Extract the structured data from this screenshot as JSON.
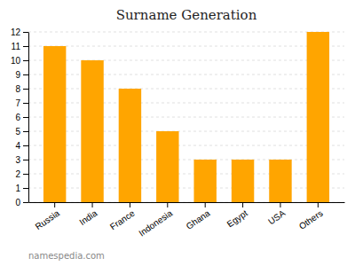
{
  "chart_data": {
    "type": "bar",
    "title": "Surname Generation",
    "categories": [
      "Russia",
      "India",
      "France",
      "Indonesia",
      "Ghana",
      "Egypt",
      "USA",
      "Others"
    ],
    "values": [
      11,
      10,
      8,
      5,
      3,
      3,
      3,
      12
    ],
    "color": "#FFA500",
    "ylim": [
      0,
      12
    ],
    "yticks": [
      0,
      1,
      2,
      3,
      4,
      5,
      6,
      7,
      8,
      9,
      10,
      11,
      12
    ],
    "grid": true,
    "annotations": [
      "namespedia.com"
    ]
  }
}
